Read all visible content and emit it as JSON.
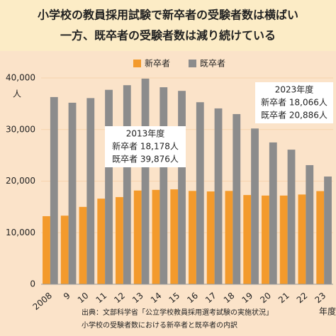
{
  "chart_data": {
    "type": "bar",
    "title": [
      "小学校の教員採用試験で新卒者の受験者数は横ばい",
      "一方、既卒者の受験者数は減り続けている"
    ],
    "y_label": "人",
    "x_label": "年度",
    "categories": [
      "2008",
      "9",
      "10",
      "11",
      "12",
      "13",
      "14",
      "15",
      "16",
      "17",
      "18",
      "19",
      "20",
      "21",
      "22",
      "23"
    ],
    "series": [
      {
        "name": "新卒者",
        "color": "#f39a2c",
        "values": [
          13200,
          13300,
          15000,
          16600,
          16900,
          18178,
          18300,
          18400,
          18100,
          18000,
          18100,
          17300,
          17200,
          17200,
          17400,
          18066
        ]
      },
      {
        "name": "既卒者",
        "color": "#8c8c8c",
        "values": [
          36300,
          35200,
          36100,
          37700,
          38600,
          39876,
          38200,
          37500,
          35300,
          34100,
          33000,
          30200,
          27500,
          26100,
          23100,
          20886
        ]
      }
    ],
    "ylim": [
      0,
      40000
    ],
    "yticks": [
      0,
      {
        "value": 10000,
        "label": "10,000"
      },
      {
        "value": 20000,
        "label": "20,000"
      },
      {
        "value": 30000,
        "label": "30,000"
      },
      {
        "value": 40000,
        "label": "40,000"
      }
    ],
    "grid": true,
    "annotations": [
      {
        "lines": [
          "2013年度",
          "新卒者 18,178人",
          "既卒者 39,876人"
        ]
      },
      {
        "lines": [
          "2023年度",
          "新卒者 18,066人",
          "既卒者 20,886人"
        ]
      }
    ],
    "source": [
      "出典：文部科学省「公立学校教員採用選考試験の実施状況」",
      "小学校の受験者数における新卒者と既卒者の内訳"
    ]
  }
}
